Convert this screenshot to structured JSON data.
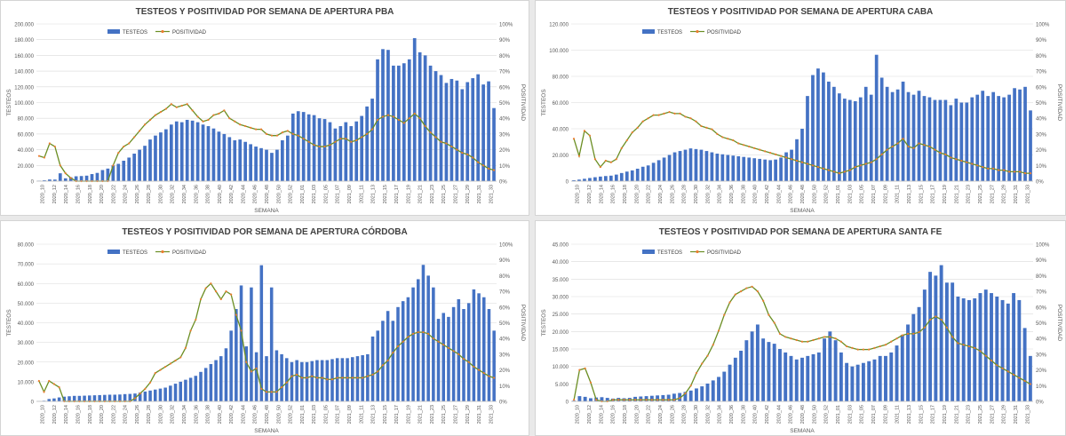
{
  "chart_data": [
    {
      "type": "bar+line",
      "title": "TESTEOS Y POSITIVIDAD POR SEMANA DE APERTURA PBA",
      "xlabel": "SEMANA",
      "ylabel": "TESTEOS",
      "y2label": "POSITIVIDAD",
      "ylim": [
        0,
        200000
      ],
      "ytick_labels": [
        "0",
        "20.000",
        "40.000",
        "60.000",
        "80.000",
        "100.000",
        "120.000",
        "140.000",
        "160.000",
        "180.000",
        "200.000"
      ],
      "y2lim": [
        0,
        100
      ],
      "y2tick_labels": [
        "0%",
        "10%",
        "20%",
        "30%",
        "40%",
        "50%",
        "60%",
        "70%",
        "80%",
        "90%",
        "100%"
      ],
      "legend_position": "top-left",
      "series": [
        {
          "name": "TESTEOS",
          "type": "bar",
          "color": "#4472C4",
          "values": [
            523,
            1060,
            2123,
            2000,
            10000,
            3600,
            5000,
            6200,
            6500,
            7000,
            9000,
            10500,
            14123,
            16000,
            20000,
            22000,
            26000,
            30000,
            35000,
            40000,
            45000,
            53000,
            58000,
            62000,
            66000,
            72000,
            76000,
            75000,
            78000,
            77000,
            75000,
            72000,
            70000,
            67000,
            63000,
            60000,
            56000,
            52000,
            53000,
            50000,
            47000,
            44000,
            42000,
            40000,
            36000,
            40000,
            52000,
            58000,
            86000,
            89000,
            88000,
            85000,
            84000,
            80000,
            79000,
            75000,
            67000,
            70000,
            75000,
            70000,
            76000,
            83000,
            95000,
            105000,
            155000,
            168000,
            167000,
            147000,
            147000,
            150000,
            155000,
            182000,
            164000,
            160000,
            147000,
            140000,
            135000,
            125000,
            130000,
            128000,
            117000,
            126000,
            131000,
            136000,
            123000,
            127000,
            93000
          ]
        },
        {
          "name": "POSITIVIDAD",
          "type": "line",
          "color": "#6B8E23",
          "marker_color": "#ED7D31",
          "values": [
            16,
            15,
            24,
            22,
            10,
            5,
            2,
            0,
            0,
            0,
            0,
            0,
            0,
            0,
            10,
            18,
            22,
            24,
            28,
            32,
            36,
            39,
            42,
            44,
            46,
            49,
            47,
            48,
            49,
            45,
            41,
            38,
            39,
            42,
            43,
            45,
            40,
            38,
            36,
            35,
            34,
            33,
            33,
            30,
            29,
            29,
            31,
            32,
            30,
            29,
            27,
            25,
            23,
            22,
            22,
            23,
            25,
            27,
            27,
            25,
            26,
            28,
            30,
            33,
            39,
            41,
            42,
            41,
            39,
            37,
            40,
            43,
            40,
            35,
            31,
            28,
            25,
            24,
            22,
            20,
            18,
            17,
            15,
            12,
            10,
            8,
            7
          ]
        }
      ],
      "x_tick_labels": [
        "2020_10",
        "2020_12",
        "2020_14",
        "2020_16",
        "2020_18",
        "2020_20",
        "2020_22",
        "2020_24",
        "2020_26",
        "2020_28",
        "2020_30",
        "2020_32",
        "2020_34",
        "2020_36",
        "2020_38",
        "2020_40",
        "2020_42",
        "2020_44",
        "2020_46",
        "2020_48",
        "2020_50",
        "2020_52",
        "2021_01",
        "2021_03",
        "2021_05",
        "2021_07",
        "2021_09",
        "2021_11",
        "2021_13",
        "2021_15",
        "2021_17",
        "2021_19",
        "2021_21",
        "2021_23",
        "2021_25",
        "2021_27",
        "2021_29",
        "2021_31",
        "2021_33"
      ]
    },
    {
      "type": "bar+line",
      "title": "TESTEOS Y POSITIVIDAD POR SEMANA DE APERTURA CABA",
      "xlabel": "SEMANA",
      "ylabel": "TESTEOS",
      "y2label": "POSITIVIDAD",
      "ylim": [
        0,
        120000
      ],
      "ytick_labels": [
        "0",
        "20.000",
        "40.000",
        "60.000",
        "80.000",
        "100.000",
        "120.000"
      ],
      "y2lim": [
        0,
        100
      ],
      "y2tick_labels": [
        "0%",
        "10%",
        "20%",
        "30%",
        "40%",
        "50%",
        "60%",
        "70%",
        "80%",
        "90%",
        "100%"
      ],
      "legend_position": "top-left",
      "series": [
        {
          "name": "TESTEOS",
          "type": "bar",
          "color": "#4472C4",
          "values": [
            700,
            1200,
            1800,
            2400,
            3000,
            3500,
            3900,
            4200,
            5000,
            6200,
            7300,
            8200,
            9500,
            11000,
            12000,
            14000,
            16000,
            18000,
            20000,
            22000,
            23000,
            24000,
            25000,
            24500,
            24000,
            23000,
            22000,
            21000,
            20500,
            20000,
            19500,
            19000,
            18500,
            18000,
            17500,
            17000,
            16500,
            16000,
            16500,
            18000,
            22000,
            24000,
            32000,
            40000,
            65000,
            81000,
            86000,
            83000,
            76000,
            72000,
            67000,
            63000,
            62000,
            61000,
            64000,
            72000,
            66000,
            96474,
            79000,
            72000,
            68000,
            70000,
            76000,
            68000,
            66000,
            69000,
            65000,
            64000,
            62000,
            62000,
            62000,
            58000,
            63000,
            60000,
            60000,
            64000,
            66000,
            69000,
            65000,
            68000,
            65000,
            64000,
            66000,
            71000,
            70000,
            72000,
            54000
          ]
        },
        {
          "name": "POSITIVIDAD",
          "type": "line",
          "color": "#6B8E23",
          "marker_color": "#ED7D31",
          "values": [
            27,
            16,
            32,
            29,
            14,
            9,
            13,
            12,
            14,
            21,
            26,
            31,
            34,
            38,
            40,
            42,
            42,
            43,
            44,
            43,
            43,
            41,
            40,
            38,
            35,
            34,
            33,
            30,
            28,
            27,
            26,
            24,
            23,
            22,
            21,
            20,
            19,
            18,
            17,
            16,
            15,
            14,
            13,
            12,
            11,
            10,
            9,
            8,
            7,
            6,
            5,
            6,
            7,
            9,
            10,
            11,
            12,
            14,
            17,
            20,
            22,
            24,
            27,
            22,
            21,
            24,
            23,
            22,
            20,
            18,
            17,
            15,
            14,
            13,
            12,
            11,
            10,
            9,
            8,
            8,
            7,
            7,
            6,
            6,
            6,
            5,
            5
          ]
        }
      ],
      "x_tick_labels": [
        "2020_10",
        "2020_12",
        "2020_14",
        "2020_16",
        "2020_18",
        "2020_20",
        "2020_22",
        "2020_24",
        "2020_26",
        "2020_28",
        "2020_30",
        "2020_32",
        "2020_34",
        "2020_36",
        "2020_38",
        "2020_40",
        "2020_42",
        "2020_44",
        "2020_46",
        "2020_48",
        "2020_50",
        "2020_52",
        "2021_01",
        "2021_03",
        "2021_05",
        "2021_07",
        "2021_09",
        "2021_11",
        "2021_13",
        "2021_15",
        "2021_17",
        "2021_19",
        "2021_21",
        "2021_23",
        "2021_25",
        "2021_27",
        "2021_29",
        "2021_31",
        "2021_33"
      ]
    },
    {
      "type": "bar+line",
      "title": "TESTEOS Y POSITIVIDAD POR SEMANA DE APERTURA CÓRDOBA",
      "xlabel": "SEMANA",
      "ylabel": "TESTEOS",
      "y2label": "POSITIVIDAD",
      "ylim": [
        0,
        80000
      ],
      "ytick_labels": [
        "0",
        "10.000",
        "20.000",
        "30.000",
        "40.000",
        "50.000",
        "60.000",
        "70.000",
        "80.000"
      ],
      "y2lim": [
        0,
        100
      ],
      "y2tick_labels": [
        "0%",
        "10%",
        "20%",
        "30%",
        "40%",
        "50%",
        "60%",
        "70%",
        "80%",
        "90%",
        "100%"
      ],
      "legend_position": "top-left",
      "series": [
        {
          "name": "TESTEOS",
          "type": "bar",
          "color": "#4472C4",
          "values": [
            70,
            300,
            1200,
            1500,
            2000,
            2400,
            2600,
            2800,
            2800,
            2900,
            3000,
            3100,
            3200,
            3300,
            3400,
            3400,
            3500,
            3700,
            3800,
            4000,
            4500,
            5000,
            5500,
            6000,
            6500,
            7000,
            8000,
            9000,
            10000,
            11000,
            12000,
            13000,
            15000,
            17000,
            19000,
            21000,
            23000,
            27000,
            36000,
            47000,
            59000,
            28000,
            58000,
            25000,
            69299,
            23000,
            58000,
            26000,
            24000,
            22000,
            20000,
            21000,
            20000,
            20000,
            20500,
            21000,
            21000,
            21000,
            21500,
            22000,
            22000,
            22000,
            22500,
            23000,
            23500,
            24000,
            33000,
            36000,
            41000,
            46000,
            41000,
            48000,
            51000,
            53000,
            58000,
            62178,
            69480,
            64000,
            58000,
            42000,
            45000,
            43000,
            48000,
            52000,
            47000,
            50000,
            57000,
            55000,
            53000,
            47000,
            36000
          ]
        },
        {
          "name": "POSITIVIDAD",
          "type": "line",
          "color": "#6B8E23",
          "marker_color": "#ED7D31",
          "values": [
            13,
            6,
            13,
            11,
            9,
            0,
            0,
            0,
            0,
            0,
            0,
            0,
            0,
            0,
            0,
            0,
            0,
            0,
            0,
            2,
            5,
            8,
            12,
            18,
            20,
            22,
            24,
            26,
            28,
            34,
            45,
            52,
            65,
            72,
            75,
            70,
            65,
            70,
            68,
            55,
            45,
            25,
            19,
            21,
            8,
            6,
            6,
            6,
            9,
            12,
            16,
            17,
            15,
            15,
            16,
            15,
            15,
            14,
            14,
            15,
            15,
            15,
            15,
            15,
            15,
            16,
            17,
            19,
            23,
            26,
            31,
            35,
            38,
            41,
            43,
            44,
            44,
            43,
            40,
            38,
            36,
            34,
            32,
            30,
            27,
            25,
            22,
            20,
            18,
            16,
            15
          ]
        }
      ],
      "x_tick_labels": [
        "2020_10",
        "2020_12",
        "2020_14",
        "2020_16",
        "2020_18",
        "2020_20",
        "2020_22",
        "2020_24",
        "2020_26",
        "2020_28",
        "2020_30",
        "2020_32",
        "2020_34",
        "2020_36",
        "2020_38",
        "2020_40",
        "2020_42",
        "2020_44",
        "2020_46",
        "2020_48",
        "2020_50",
        "2020_52",
        "2021_01",
        "2021_03",
        "2021_05",
        "2021_07",
        "2021_09",
        "2021_11",
        "2021_13",
        "2021_15",
        "2021_17",
        "2021_19",
        "2021_21",
        "2021_23",
        "2021_25",
        "2021_27",
        "2021_29",
        "2021_31",
        "2021_33"
      ]
    },
    {
      "type": "bar+line",
      "title": "TESTEOS Y POSITIVIDAD POR SEMANA DE APERTURA SANTA FE",
      "xlabel": "SEMANA",
      "ylabel": "TESTEOS",
      "y2label": "POSITIVIDAD",
      "ylim": [
        0,
        45000
      ],
      "ytick_labels": [
        "0",
        "5.000",
        "10.000",
        "15.000",
        "20.000",
        "25.000",
        "30.000",
        "35.000",
        "40.000",
        "45.000"
      ],
      "y2lim": [
        0,
        100
      ],
      "y2tick_labels": [
        "0%",
        "10%",
        "20%",
        "30%",
        "40%",
        "50%",
        "60%",
        "70%",
        "80%",
        "90%",
        "100%"
      ],
      "legend_position": "top-left",
      "series": [
        {
          "name": "TESTEOS",
          "type": "bar",
          "color": "#4472C4",
          "values": [
            200,
            1500,
            1300,
            900,
            1100,
            1200,
            1000,
            800,
            1000,
            900,
            1000,
            1300,
            1400,
            1500,
            1600,
            1700,
            1800,
            1900,
            2200,
            2400,
            2700,
            3100,
            3700,
            4300,
            5100,
            6000,
            7000,
            8500,
            10500,
            12500,
            14500,
            17500,
            20000,
            22000,
            18000,
            17000,
            16500,
            15000,
            14000,
            13000,
            12000,
            12500,
            13000,
            13500,
            14000,
            18000,
            20000,
            17500,
            14000,
            11000,
            10000,
            10500,
            11000,
            11500,
            12000,
            13000,
            13000,
            14000,
            16000,
            19000,
            22000,
            25000,
            27000,
            32000,
            37079,
            36000,
            39000,
            34000,
            34000,
            30000,
            29500,
            29000,
            29500,
            31000,
            32000,
            31000,
            30000,
            29000,
            28000,
            31000,
            29000,
            21000,
            13000
          ]
        },
        {
          "name": "POSITIVIDAD",
          "type": "line",
          "color": "#6B8E23",
          "marker_color": "#ED7D31",
          "values": [
            1,
            20,
            21,
            12,
            1,
            0,
            0,
            1,
            1,
            1,
            1,
            1,
            1,
            1,
            1,
            1,
            1,
            1,
            1,
            2,
            5,
            10,
            18,
            24,
            29,
            36,
            45,
            55,
            63,
            68,
            70,
            72,
            73,
            70,
            64,
            55,
            50,
            43,
            41,
            40,
            39,
            38,
            38,
            39,
            40,
            41,
            41,
            40,
            38,
            35,
            34,
            33,
            33,
            33,
            34,
            35,
            36,
            38,
            40,
            42,
            43,
            43,
            44,
            47,
            52,
            54,
            52,
            47,
            41,
            37,
            36,
            35,
            34,
            32,
            29,
            26,
            23,
            21,
            19,
            17,
            15,
            13,
            11
          ]
        }
      ],
      "x_tick_labels": [
        "2020_10",
        "2020_12",
        "2020_14",
        "2020_16",
        "2020_18",
        "2020_20",
        "2020_22",
        "2020_24",
        "2020_26",
        "2020_28",
        "2020_30",
        "2020_32",
        "2020_34",
        "2020_36",
        "2020_38",
        "2020_40",
        "2020_42",
        "2020_44",
        "2020_46",
        "2020_48",
        "2020_50",
        "2020_52",
        "2021_01",
        "2021_03",
        "2021_05",
        "2021_07",
        "2021_09",
        "2021_11",
        "2021_13",
        "2021_15",
        "2021_17",
        "2021_19",
        "2021_21",
        "2021_23",
        "2021_25",
        "2021_27",
        "2021_29",
        "2021_31",
        "2021_33"
      ]
    }
  ]
}
